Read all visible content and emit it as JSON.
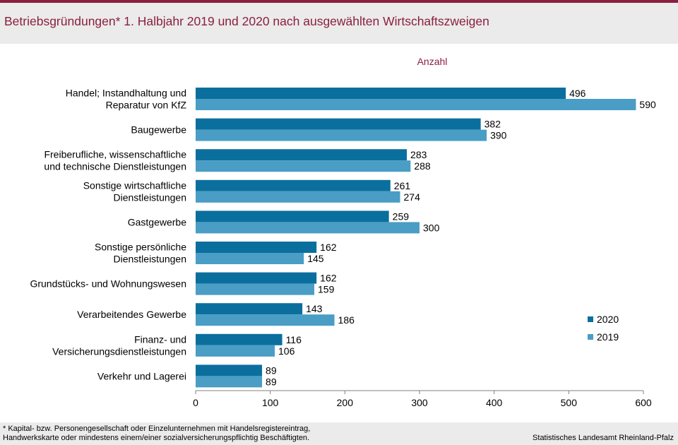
{
  "title": "Betriebsgründungen*  1. Halbjahr 2019 und 2020  nach ausgewählten Wirtschaftszweigen",
  "footnote": "* Kapital- bzw. Personengesellschaft  oder Einzelunternehmen  mit  Handelsregistereintrag,\nHandwerkskarte  oder  mindestens  einem/einer  sozialversicherungspflichtig  Beschäftigten.",
  "source": "Statistisches Landesamt Rheinland-Pfalz",
  "colors": {
    "accent": "#8b1f3f",
    "series_2020": "#0b6f9e",
    "series_2019": "#4a9dc4",
    "background": "#ebebeb"
  },
  "chart_data": {
    "type": "bar",
    "orientation": "horizontal",
    "unit_label": "Anzahl",
    "categories": [
      [
        "Handel; Instandhaltung und",
        "Reparatur von KfZ"
      ],
      [
        "Baugewerbe"
      ],
      [
        "Freiberufliche, wissenschaftliche",
        "und technische Dienstleistungen"
      ],
      [
        "Sonstige wirtschaftliche",
        "Dienstleistungen"
      ],
      [
        "Gastgewerbe"
      ],
      [
        "Sonstige persönliche",
        "Dienstleistungen"
      ],
      [
        "Grundstücks- und Wohnungswesen"
      ],
      [
        "Verarbeitendes Gewerbe"
      ],
      [
        "Finanz- und",
        "Versicherungsdienstleistungen"
      ],
      [
        "Verkehr und Lagerei"
      ]
    ],
    "series": [
      {
        "name": "2020",
        "color": "#0b6f9e",
        "values": [
          496,
          382,
          283,
          261,
          259,
          162,
          162,
          143,
          116,
          89
        ]
      },
      {
        "name": "2019",
        "color": "#4a9dc4",
        "values": [
          590,
          390,
          288,
          274,
          300,
          145,
          159,
          186,
          106,
          89
        ]
      }
    ],
    "xlim": [
      0,
      600
    ],
    "xticks": [
      0,
      100,
      200,
      300,
      400,
      500,
      600
    ],
    "legend": "right",
    "grid": false
  }
}
